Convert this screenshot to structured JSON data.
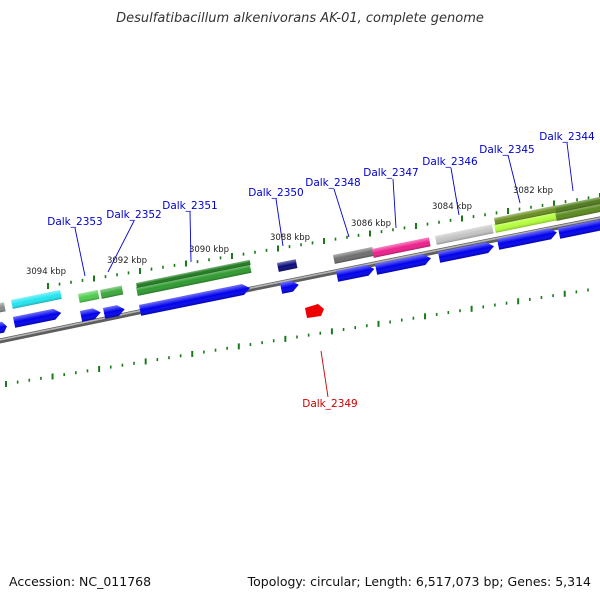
{
  "title": "Desulfatibacillum alkenivorans AK-01, complete genome",
  "footer": {
    "accession": "Accession: NC_011768",
    "summary": "Topology: circular; Length: 6,517,073 bp; Genes: 5,314"
  },
  "colors": {
    "label_forward": "#0000cc",
    "label_reverse": "#cc0000",
    "tick": "#1a7a1a",
    "backbone": "#8a8a8a",
    "cds_blue": "#0000ee",
    "reverse_gene": "#ee0000"
  },
  "kbp_labels": [
    "3094 kbp",
    "3092 kbp",
    "3090 kbp",
    "3088 kbp",
    "3086 kbp",
    "3084 kbp",
    "3082 kbp"
  ],
  "genes": [
    {
      "label": "Dalk_2344",
      "strand": "forward",
      "color": "#5b8a1e"
    },
    {
      "label": "Dalk_2345",
      "strand": "forward",
      "color": "#b4ff3c"
    },
    {
      "label": "Dalk_2346",
      "strand": "forward",
      "color": "#c4c4c4"
    },
    {
      "label": "Dalk_2347",
      "strand": "forward",
      "color": "#ee1f8c"
    },
    {
      "label": "Dalk_2348",
      "strand": "forward",
      "color": "#6e6e6e"
    },
    {
      "label": "Dalk_2349",
      "strand": "reverse",
      "color": "#ee0000"
    },
    {
      "label": "Dalk_2350",
      "strand": "forward",
      "color": "#0a0a7a"
    },
    {
      "label": "Dalk_2351",
      "strand": "forward",
      "color": "#2e9a2e"
    },
    {
      "label": "Dalk_2352",
      "strand": "forward",
      "color": "#3aa83a"
    },
    {
      "label": "Dalk_2353",
      "strand": "forward",
      "color": "#4dcc4d"
    }
  ],
  "unlabeled_feature": {
    "color": "#22e5f0"
  }
}
